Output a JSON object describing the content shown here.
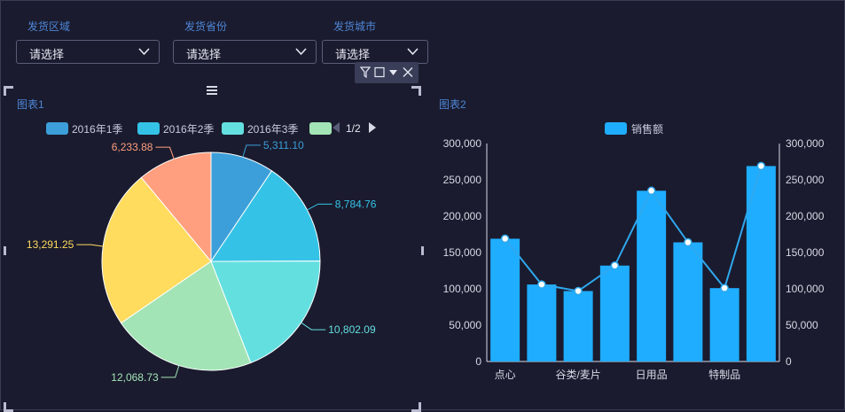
{
  "filters": [
    {
      "label": "发货区域",
      "value": "请选择"
    },
    {
      "label": "发货省份",
      "value": "请选择"
    },
    {
      "label": "发货城市",
      "value": "请选择"
    }
  ],
  "toolbar_icons": [
    "filter-icon",
    "square-icon",
    "caret-down-icon",
    "close-icon"
  ],
  "chart1": {
    "title": "图表1",
    "page_indicator": "1/2"
  },
  "chart2": {
    "title": "图表2"
  },
  "colors": {
    "background": "#1a1b2e",
    "pie": [
      "#3c9fd9",
      "#34c3e6",
      "#64dfe0",
      "#a2e4b5",
      "#ffdb5e",
      "#ff9f7f"
    ],
    "bar": "#1fadff",
    "line": "#2fa8ee",
    "accent_title": "#4e86d6"
  },
  "chart_data": [
    {
      "type": "pie",
      "title": "图表1",
      "legend_visible": [
        "2016年1季",
        "2016年2季",
        "2016年3季",
        ""
      ],
      "legend_placement": "top",
      "values": [
        5311.1,
        8784.76,
        10802.09,
        12068.73,
        13291.25,
        6233.88
      ],
      "data_labels": [
        "5,311.10",
        "8,784.76",
        "10,802.09",
        "12,068.73",
        "13,291.25",
        "6,233.88"
      ]
    },
    {
      "type": "bar",
      "title": "图表2",
      "legend": [
        "销售额"
      ],
      "legend_placement": "top",
      "categories": [
        "点心",
        "",
        "谷类/麦片",
        "",
        "日用品",
        "",
        "特制品",
        ""
      ],
      "series": [
        {
          "name": "销售额",
          "type": "bar",
          "values": [
            169000,
            106000,
            97000,
            132000,
            235000,
            164000,
            101000,
            269000
          ]
        },
        {
          "type": "line",
          "values": [
            169000,
            106000,
            97000,
            132000,
            235000,
            164000,
            101000,
            269000
          ]
        }
      ],
      "ylim": [
        0,
        300000
      ],
      "yticks": [
        "0",
        "50,000",
        "100,000",
        "150,000",
        "200,000",
        "250,000",
        "300,000"
      ],
      "y2ticks": [
        "0",
        "50,000",
        "100,000",
        "150,000",
        "200,000",
        "250,000",
        "300,000"
      ],
      "grid": false
    }
  ]
}
